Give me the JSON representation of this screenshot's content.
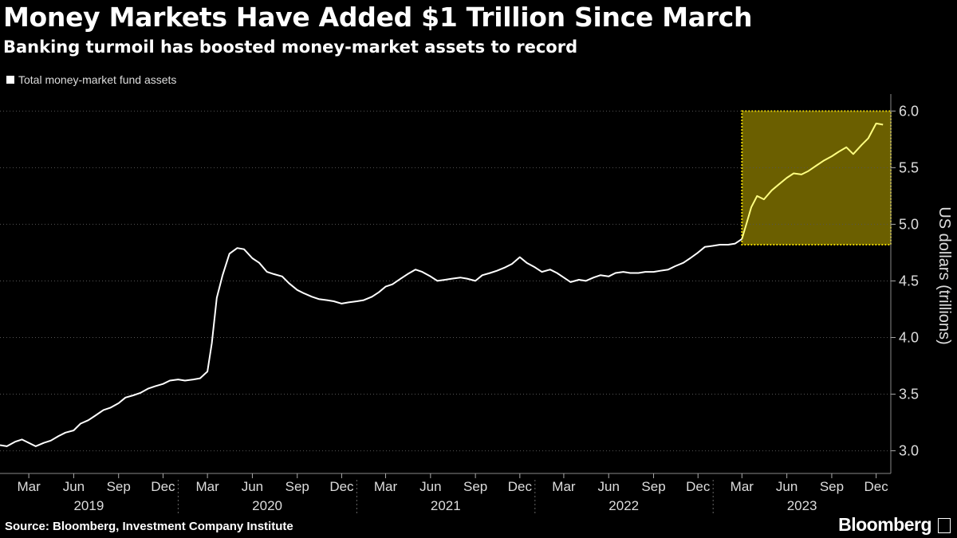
{
  "header": {
    "title": "Money Markets Have Added $1 Trillion Since March",
    "subtitle": "Banking turmoil has boosted money-market assets to record"
  },
  "legend": {
    "label": "Total money-market fund assets"
  },
  "footer": {
    "source": "Source: Bloomberg, Investment Company Institute",
    "brand": "Bloomberg"
  },
  "colors": {
    "background": "#000000",
    "line": "#ffffff",
    "highlight_fill": "#6b5f00",
    "highlight_border": "#e8d400",
    "highlight_line": "#ffff80"
  },
  "chart_data": {
    "type": "line",
    "title": "Money Markets Have Added $1 Trillion Since March",
    "subtitle": "Banking turmoil has boosted money-market assets to record",
    "ylabel": "US dollars (trillions)",
    "ylim": [
      2.8,
      6.15
    ],
    "yticks": [
      3.0,
      3.5,
      4.0,
      4.5,
      5.0,
      5.5,
      6.0
    ],
    "xlim": [
      "2019-01-01",
      "2023-12-31"
    ],
    "xticks": [
      {
        "date": "2019-03-01",
        "label": "Mar"
      },
      {
        "date": "2019-06-01",
        "label": "Jun"
      },
      {
        "date": "2019-09-01",
        "label": "Sep"
      },
      {
        "date": "2019-12-01",
        "label": "Dec"
      },
      {
        "date": "2020-03-01",
        "label": "Mar"
      },
      {
        "date": "2020-06-01",
        "label": "Jun"
      },
      {
        "date": "2020-09-01",
        "label": "Sep"
      },
      {
        "date": "2020-12-01",
        "label": "Dec"
      },
      {
        "date": "2021-03-01",
        "label": "Mar"
      },
      {
        "date": "2021-06-01",
        "label": "Jun"
      },
      {
        "date": "2021-09-01",
        "label": "Sep"
      },
      {
        "date": "2021-12-01",
        "label": "Dec"
      },
      {
        "date": "2022-03-01",
        "label": "Mar"
      },
      {
        "date": "2022-06-01",
        "label": "Jun"
      },
      {
        "date": "2022-09-01",
        "label": "Sep"
      },
      {
        "date": "2022-12-01",
        "label": "Dec"
      },
      {
        "date": "2023-03-01",
        "label": "Mar"
      },
      {
        "date": "2023-06-01",
        "label": "Jun"
      },
      {
        "date": "2023-09-01",
        "label": "Sep"
      },
      {
        "date": "2023-12-01",
        "label": "Dec"
      }
    ],
    "years": [
      "2019",
      "2020",
      "2021",
      "2022",
      "2023"
    ],
    "highlight": {
      "x_start": "2023-03-01",
      "x_end": "2023-12-31",
      "y_start": 4.82,
      "y_end": 6.0
    },
    "series": [
      {
        "name": "Total money-market fund assets",
        "points": [
          [
            "2019-01-01",
            3.05
          ],
          [
            "2019-01-15",
            3.04
          ],
          [
            "2019-02-01",
            3.08
          ],
          [
            "2019-02-15",
            3.1
          ],
          [
            "2019-03-01",
            3.07
          ],
          [
            "2019-03-15",
            3.04
          ],
          [
            "2019-04-01",
            3.07
          ],
          [
            "2019-04-15",
            3.09
          ],
          [
            "2019-05-01",
            3.13
          ],
          [
            "2019-05-15",
            3.16
          ],
          [
            "2019-06-01",
            3.18
          ],
          [
            "2019-06-15",
            3.24
          ],
          [
            "2019-07-01",
            3.27
          ],
          [
            "2019-07-15",
            3.31
          ],
          [
            "2019-08-01",
            3.36
          ],
          [
            "2019-08-15",
            3.38
          ],
          [
            "2019-09-01",
            3.42
          ],
          [
            "2019-09-15",
            3.47
          ],
          [
            "2019-10-01",
            3.49
          ],
          [
            "2019-10-15",
            3.51
          ],
          [
            "2019-11-01",
            3.55
          ],
          [
            "2019-11-15",
            3.57
          ],
          [
            "2019-12-01",
            3.59
          ],
          [
            "2019-12-15",
            3.62
          ],
          [
            "2020-01-01",
            3.63
          ],
          [
            "2020-01-15",
            3.62
          ],
          [
            "2020-02-01",
            3.63
          ],
          [
            "2020-02-15",
            3.64
          ],
          [
            "2020-03-01",
            3.7
          ],
          [
            "2020-03-10",
            3.95
          ],
          [
            "2020-03-20",
            4.35
          ],
          [
            "2020-04-01",
            4.55
          ],
          [
            "2020-04-15",
            4.74
          ],
          [
            "2020-05-01",
            4.79
          ],
          [
            "2020-05-15",
            4.78
          ],
          [
            "2020-06-01",
            4.7
          ],
          [
            "2020-06-15",
            4.66
          ],
          [
            "2020-07-01",
            4.58
          ],
          [
            "2020-07-15",
            4.56
          ],
          [
            "2020-08-01",
            4.54
          ],
          [
            "2020-08-15",
            4.48
          ],
          [
            "2020-09-01",
            4.42
          ],
          [
            "2020-09-15",
            4.39
          ],
          [
            "2020-10-01",
            4.36
          ],
          [
            "2020-10-15",
            4.34
          ],
          [
            "2020-11-01",
            4.33
          ],
          [
            "2020-11-15",
            4.32
          ],
          [
            "2020-12-01",
            4.3
          ],
          [
            "2020-12-15",
            4.31
          ],
          [
            "2021-01-01",
            4.32
          ],
          [
            "2021-01-15",
            4.33
          ],
          [
            "2021-02-01",
            4.36
          ],
          [
            "2021-02-15",
            4.4
          ],
          [
            "2021-03-01",
            4.45
          ],
          [
            "2021-03-15",
            4.47
          ],
          [
            "2021-04-01",
            4.52
          ],
          [
            "2021-04-15",
            4.56
          ],
          [
            "2021-05-01",
            4.6
          ],
          [
            "2021-05-15",
            4.58
          ],
          [
            "2021-06-01",
            4.54
          ],
          [
            "2021-06-15",
            4.5
          ],
          [
            "2021-07-01",
            4.51
          ],
          [
            "2021-07-15",
            4.52
          ],
          [
            "2021-08-01",
            4.53
          ],
          [
            "2021-08-15",
            4.52
          ],
          [
            "2021-09-01",
            4.5
          ],
          [
            "2021-09-15",
            4.55
          ],
          [
            "2021-10-01",
            4.57
          ],
          [
            "2021-10-15",
            4.59
          ],
          [
            "2021-11-01",
            4.62
          ],
          [
            "2021-11-15",
            4.65
          ],
          [
            "2021-12-01",
            4.71
          ],
          [
            "2021-12-15",
            4.66
          ],
          [
            "2022-01-01",
            4.62
          ],
          [
            "2022-01-15",
            4.58
          ],
          [
            "2022-02-01",
            4.6
          ],
          [
            "2022-02-15",
            4.57
          ],
          [
            "2022-03-01",
            4.53
          ],
          [
            "2022-03-15",
            4.49
          ],
          [
            "2022-04-01",
            4.51
          ],
          [
            "2022-04-15",
            4.5
          ],
          [
            "2022-05-01",
            4.53
          ],
          [
            "2022-05-15",
            4.55
          ],
          [
            "2022-06-01",
            4.54
          ],
          [
            "2022-06-15",
            4.57
          ],
          [
            "2022-07-01",
            4.58
          ],
          [
            "2022-07-15",
            4.57
          ],
          [
            "2022-08-01",
            4.57
          ],
          [
            "2022-08-15",
            4.58
          ],
          [
            "2022-09-01",
            4.58
          ],
          [
            "2022-09-15",
            4.59
          ],
          [
            "2022-10-01",
            4.6
          ],
          [
            "2022-10-15",
            4.63
          ],
          [
            "2022-11-01",
            4.66
          ],
          [
            "2022-11-15",
            4.7
          ],
          [
            "2022-12-01",
            4.75
          ],
          [
            "2022-12-15",
            4.8
          ],
          [
            "2023-01-01",
            4.81
          ],
          [
            "2023-01-15",
            4.82
          ],
          [
            "2023-02-01",
            4.82
          ],
          [
            "2023-02-15",
            4.83
          ],
          [
            "2023-03-01",
            4.87
          ],
          [
            "2023-03-10",
            5.0
          ],
          [
            "2023-03-20",
            5.15
          ],
          [
            "2023-04-01",
            5.25
          ],
          [
            "2023-04-15",
            5.22
          ],
          [
            "2023-05-01",
            5.3
          ],
          [
            "2023-05-15",
            5.35
          ],
          [
            "2023-06-01",
            5.41
          ],
          [
            "2023-06-15",
            5.45
          ],
          [
            "2023-07-01",
            5.44
          ],
          [
            "2023-07-15",
            5.47
          ],
          [
            "2023-08-01",
            5.52
          ],
          [
            "2023-08-15",
            5.56
          ],
          [
            "2023-09-01",
            5.6
          ],
          [
            "2023-09-15",
            5.64
          ],
          [
            "2023-10-01",
            5.68
          ],
          [
            "2023-10-15",
            5.62
          ],
          [
            "2023-11-01",
            5.7
          ],
          [
            "2023-11-15",
            5.76
          ],
          [
            "2023-12-01",
            5.89
          ],
          [
            "2023-12-15",
            5.88
          ]
        ]
      }
    ]
  }
}
